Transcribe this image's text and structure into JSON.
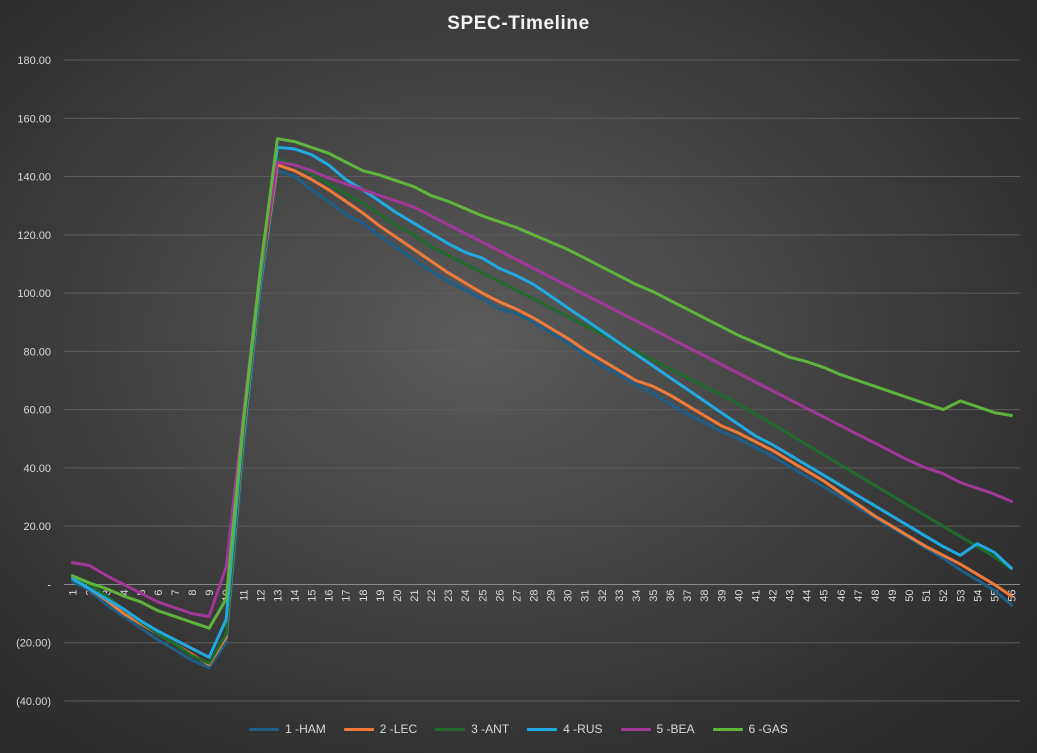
{
  "chart_data": {
    "type": "line",
    "title": "SPEC-Timeline",
    "xlabel": "",
    "ylabel": "",
    "ylim": [
      -40,
      180
    ],
    "y_ticks": [
      180,
      160,
      140,
      120,
      100,
      80,
      60,
      40,
      20,
      0,
      -20,
      -40
    ],
    "y_tick_labels": [
      "180.00",
      "160.00",
      "140.00",
      "120.00",
      "100.00",
      "80.00",
      "60.00",
      "40.00",
      "20.00",
      "-",
      "(20.00)",
      "(40.00)"
    ],
    "x_tick_labels": [
      "1",
      "2",
      "3",
      "4",
      "5",
      "6",
      "7",
      "8",
      "9",
      "10",
      "11",
      "12",
      "13",
      "14",
      "15",
      "16",
      "17",
      "18",
      "19",
      "20",
      "21",
      "22",
      "23",
      "24",
      "25",
      "26",
      "27",
      "28",
      "29",
      "30",
      "31",
      "32",
      "33",
      "34",
      "35",
      "36",
      "37",
      "38",
      "39",
      "40",
      "41",
      "42",
      "43",
      "44",
      "45",
      "46",
      "47",
      "48",
      "49",
      "50",
      "51",
      "52",
      "53",
      "54",
      "55",
      "56"
    ],
    "grid": "horizontal",
    "legend": "bottom",
    "series": [
      {
        "name": "1 -HAM",
        "color": "#1f5f87",
        "values": [
          1,
          -2,
          -7,
          -11,
          -15,
          -19,
          -22.5,
          -26,
          -28.5,
          -20,
          45,
          100,
          142,
          140,
          135.5,
          131.5,
          127,
          124,
          119.5,
          115.5,
          111.5,
          107.5,
          104,
          101,
          98,
          94.5,
          93,
          90,
          86.5,
          83,
          79,
          75,
          72,
          68.5,
          65.5,
          62,
          58.5,
          55.5,
          52.5,
          50,
          47,
          44,
          40.5,
          37,
          33.5,
          30,
          26.5,
          23,
          19.5,
          16,
          12.5,
          9,
          5,
          1.5,
          -2,
          -7
        ]
      },
      {
        "name": "2 -LEC",
        "color": "#f07b3a",
        "values": [
          2,
          -1.5,
          -5.5,
          -10,
          -13.5,
          -17,
          -20.5,
          -24,
          -27.5,
          -18,
          50,
          103,
          144,
          142,
          139,
          135.5,
          131.5,
          127.5,
          123,
          119,
          115,
          111,
          107,
          103.5,
          100,
          97,
          94.5,
          91.5,
          88,
          84.5,
          80.5,
          77,
          73.5,
          70,
          68,
          65,
          61.5,
          58,
          54.5,
          52,
          49,
          46,
          42.5,
          39,
          35.5,
          31.5,
          27.5,
          23.5,
          20,
          16.5,
          13,
          10,
          7,
          3.5,
          0,
          -4
        ]
      },
      {
        "name": "3 -ANT",
        "color": "#1f6a2c",
        "values": [
          3,
          0,
          -4,
          -8.5,
          -13,
          -17,
          -20.5,
          -24.5,
          -27,
          -17,
          52,
          104,
          146,
          144,
          141,
          137.5,
          134,
          131,
          127,
          123,
          120,
          116,
          113,
          110,
          107,
          104,
          101,
          98,
          95,
          92,
          89,
          86,
          83,
          80,
          77,
          74,
          71,
          68,
          65,
          62,
          58.5,
          55,
          51.5,
          48,
          44.5,
          41,
          37.5,
          34,
          30.5,
          27,
          23.5,
          20,
          16.5,
          13,
          9.5,
          5.5
        ]
      },
      {
        "name": "4 -RUS",
        "color": "#21a9e1",
        "values": [
          2,
          -1.5,
          -5,
          -8.5,
          -12.5,
          -16,
          -19,
          -22,
          -25,
          -12,
          55,
          106,
          150,
          149.5,
          147.5,
          144,
          139,
          135.5,
          131.5,
          127.5,
          124,
          120.5,
          117,
          114,
          112,
          108.5,
          106,
          103,
          99,
          95,
          91,
          87,
          83,
          79,
          75,
          71,
          67,
          63,
          59,
          55,
          51,
          48,
          44.5,
          41,
          37.5,
          34,
          30.5,
          27,
          23.5,
          20,
          16.5,
          13,
          10,
          14,
          11,
          5.5
        ]
      },
      {
        "name": "5 -BEA",
        "color": "#a2379a",
        "values": [
          7.5,
          6.5,
          3,
          0,
          -3,
          -6,
          -8,
          -10,
          -11,
          6,
          58,
          108,
          145,
          144,
          142,
          139.5,
          137.5,
          135.5,
          133.5,
          131.5,
          129.5,
          126.5,
          123.5,
          120.5,
          117.5,
          114.5,
          111.5,
          108.5,
          105.5,
          102.5,
          99.5,
          96.5,
          93.5,
          90.5,
          87.5,
          84.5,
          81.5,
          78.5,
          75.5,
          72.5,
          69.5,
          66.5,
          63.5,
          60.5,
          57.5,
          54.5,
          51.5,
          48.5,
          45.5,
          42.5,
          40,
          38,
          35,
          33,
          31,
          28.5
        ]
      },
      {
        "name": "6 -GAS",
        "color": "#5fb53c",
        "values": [
          3,
          0.5,
          -1.5,
          -4,
          -6,
          -9,
          -11,
          -13,
          -15,
          -5,
          56,
          108,
          153,
          152,
          150,
          148,
          145,
          142,
          140.5,
          138.5,
          136.5,
          133.5,
          131.5,
          129,
          126.5,
          124.5,
          122.5,
          120,
          117.5,
          115,
          112,
          109,
          106,
          103,
          100.5,
          97.5,
          94.5,
          91.5,
          88.5,
          85.5,
          83,
          80.5,
          78,
          76.5,
          74.5,
          72,
          70,
          68,
          66,
          64,
          62,
          60,
          63,
          61,
          59,
          58
        ]
      }
    ]
  }
}
